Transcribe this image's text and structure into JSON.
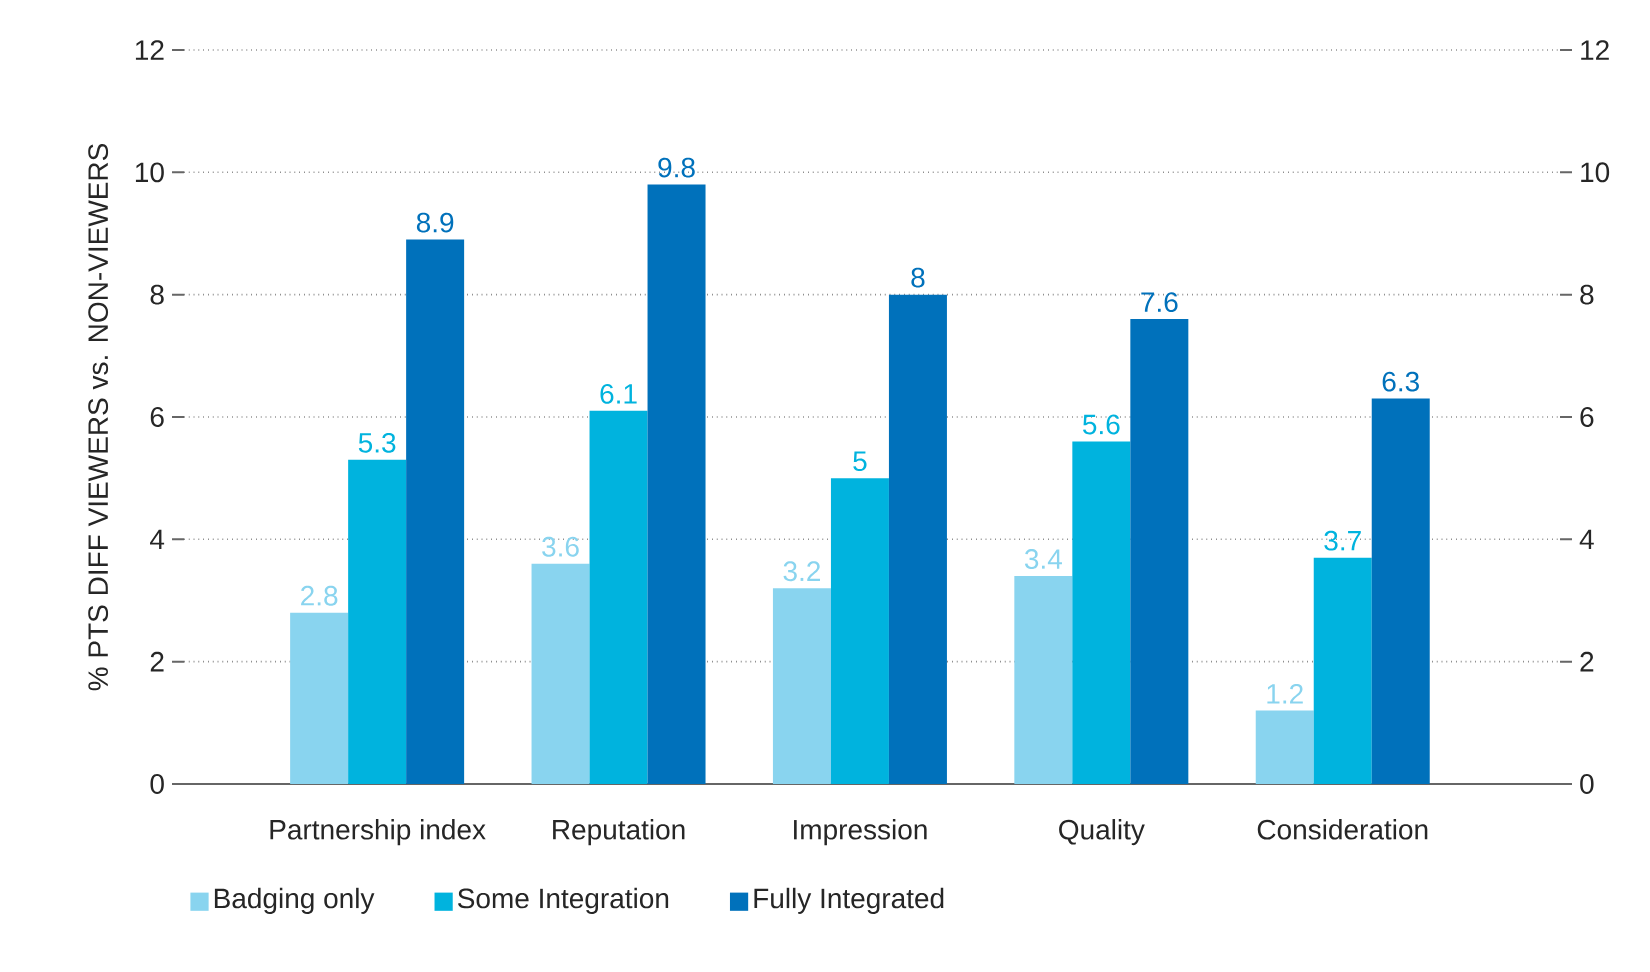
{
  "chart_data": {
    "type": "bar",
    "ylabel": "% PTS DIFF VIEWERS vs. NON-VIEWERS",
    "categories": [
      "Partnership index",
      "Reputation",
      "Impression",
      "Quality",
      "Consideration"
    ],
    "series": [
      {
        "name": "Badging only",
        "color": "#89d4ef",
        "values": [
          2.8,
          3.6,
          3.2,
          3.4,
          1.2
        ]
      },
      {
        "name": "Some Integration",
        "color": "#00b3de",
        "values": [
          5.3,
          6.1,
          5,
          5.6,
          3.7
        ]
      },
      {
        "name": "Fully Integrated",
        "color": "#0071bb",
        "values": [
          8.9,
          9.8,
          8,
          7.6,
          6.3
        ]
      }
    ],
    "ylim": [
      0,
      12
    ],
    "yticks": [
      0,
      2,
      4,
      6,
      8,
      10,
      12
    ],
    "y2lim": [
      0,
      12
    ],
    "y2ticks": [
      0,
      2,
      4,
      6,
      8,
      10,
      12
    ],
    "grid": "y",
    "legend": "bottom left",
    "data_labels": true
  }
}
